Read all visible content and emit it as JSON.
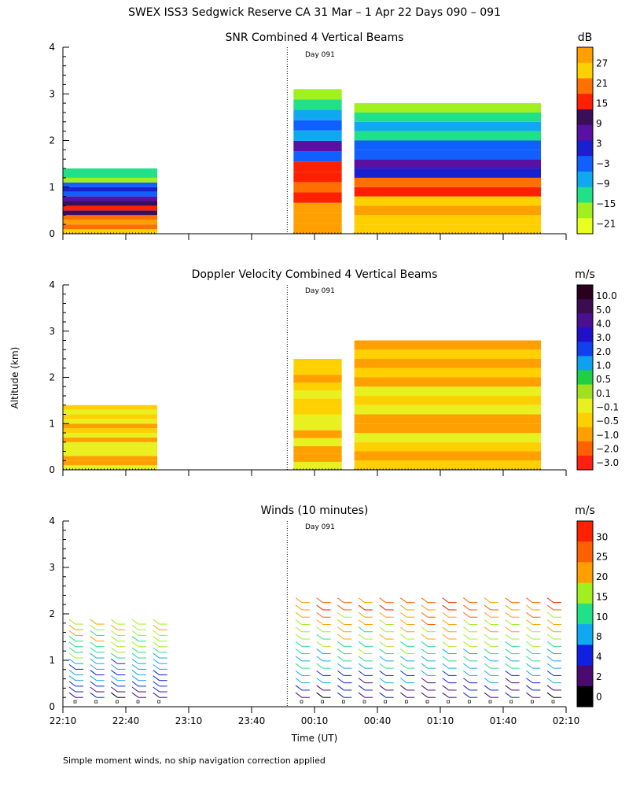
{
  "figure": {
    "title": "SWEX ISS3 Sedgwick Reserve CA  31 Mar –  1 Apr 22 Days 090 – 091",
    "ylabel": "Altitude (km)",
    "xlabel": "Time (UT)",
    "footnote": "Simple moment winds, no ship navigation correction applied",
    "day_marker": "Day 091"
  },
  "chart_data": [
    {
      "type": "heatmap",
      "title": "SNR Combined 4 Vertical Beams",
      "units": "dB",
      "xlabel": "Time (UT)",
      "ylabel": "Altitude (km)",
      "x_ticks": [
        "22:10",
        "22:40",
        "23:10",
        "23:40",
        "00:10",
        "00:40",
        "01:10",
        "01:40",
        "02:10"
      ],
      "y_ticks": [
        "0",
        "1",
        "2",
        "3",
        "4"
      ],
      "ylim": [
        0,
        4
      ],
      "colorbar_ticks": [
        "27",
        "21",
        "15",
        "9",
        "3",
        "−3",
        "−9",
        "−15",
        "−21"
      ],
      "colorbar_colors": [
        "#ff9f00",
        "#ffd000",
        "#ff7000",
        "#ff2000",
        "#3a0f5a",
        "#5a10a0",
        "#1a20d0",
        "#1060ff",
        "#10a8f0",
        "#20e088",
        "#a0f020",
        "#e8ff20"
      ],
      "data_segments": [
        {
          "start": "22:10",
          "end": "22:55",
          "top_km": 1.4
        },
        {
          "start": "00:00",
          "end": "00:23",
          "top_km": 3.1
        },
        {
          "start": "00:29",
          "end": "01:58",
          "top_km": 2.8
        }
      ]
    },
    {
      "type": "heatmap",
      "title": "Doppler Velocity Combined 4 Vertical Beams",
      "units": "m/s",
      "x_ticks": [
        "22:10",
        "22:40",
        "23:10",
        "23:40",
        "00:10",
        "00:40",
        "01:10",
        "01:40",
        "02:10"
      ],
      "y_ticks": [
        "0",
        "1",
        "2",
        "3",
        "4"
      ],
      "ylim": [
        0,
        4
      ],
      "colorbar_ticks": [
        "10.0",
        "5.0",
        "4.0",
        "3.0",
        "2.0",
        "1.0",
        "0.5",
        "0.1",
        "−0.1",
        "−0.5",
        "−1.0",
        "−2.0",
        "−3.0"
      ],
      "colorbar_colors": [
        "#2a0020",
        "#3a0c50",
        "#4a1090",
        "#2010c8",
        "#1040f0",
        "#10a0f0",
        "#20d040",
        "#a0e020",
        "#e8f020",
        "#ffd000",
        "#ffa000",
        "#ff6000",
        "#ff2010"
      ],
      "data_segments": [
        {
          "start": "22:10",
          "end": "22:55",
          "top_km": 1.4
        },
        {
          "start": "00:00",
          "end": "00:23",
          "top_km": 2.4
        },
        {
          "start": "00:29",
          "end": "01:58",
          "top_km": 2.8
        }
      ]
    },
    {
      "type": "scatter",
      "title": "Winds (10 minutes)",
      "units": "m/s",
      "x_ticks": [
        "22:10",
        "22:40",
        "23:10",
        "23:40",
        "00:10",
        "00:40",
        "01:10",
        "01:40",
        "02:10"
      ],
      "y_ticks": [
        "0",
        "1",
        "2",
        "3",
        "4"
      ],
      "ylim": [
        0,
        4
      ],
      "colorbar_ticks": [
        "30",
        "25",
        "20",
        "15",
        "10",
        "8",
        "4",
        "2",
        "0"
      ],
      "colorbar_colors": [
        "#ff2000",
        "#ff6000",
        "#ffa000",
        "#a0f020",
        "#20e088",
        "#10a8f0",
        "#1020e0",
        "#4a0a70",
        "#000000"
      ],
      "profile_times": [
        "22:16",
        "22:26",
        "22:36",
        "22:46",
        "22:56",
        "00:04",
        "00:14",
        "00:24",
        "00:34",
        "00:44",
        "00:54",
        "01:04",
        "01:14",
        "01:24",
        "01:34",
        "01:44",
        "01:54",
        "02:04"
      ]
    }
  ]
}
